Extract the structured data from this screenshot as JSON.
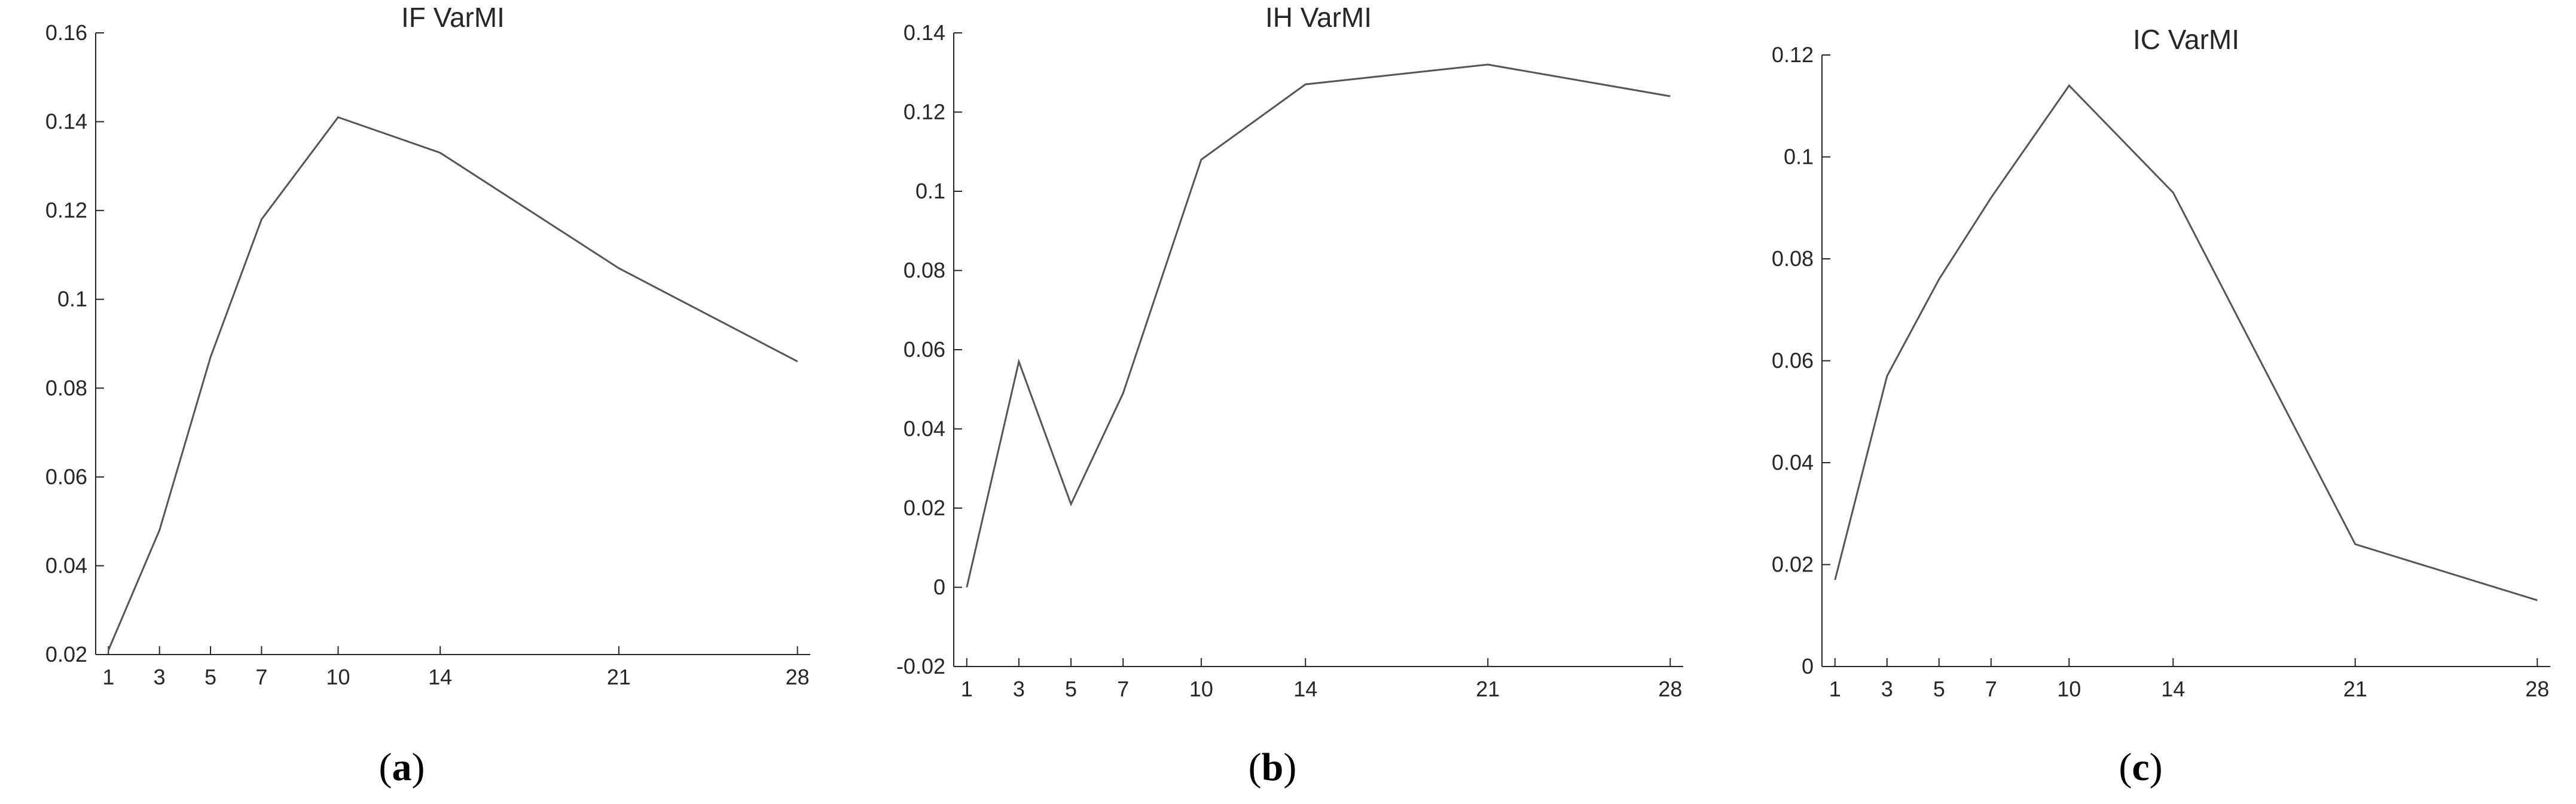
{
  "chart_data": [
    {
      "type": "line",
      "title": "IF VarMI",
      "caption": {
        "open": "(",
        "letter": "a",
        "close": ")"
      },
      "xlabel": "",
      "ylabel": "",
      "x": [
        1,
        3,
        5,
        7,
        10,
        14,
        21,
        28
      ],
      "xlim": [
        0.5,
        28.5
      ],
      "ylim": [
        0.02,
        0.16
      ],
      "y_ticks": [
        "0.02",
        "0.04",
        "0.06",
        "0.08",
        "0.1",
        "0.12",
        "0.14",
        "0.16"
      ],
      "series": [
        {
          "values": [
            0.021,
            0.048,
            0.087,
            0.118,
            0.141,
            0.133,
            0.107,
            0.086
          ]
        }
      ],
      "grid": false,
      "line_color": "#555555"
    },
    {
      "type": "line",
      "title": "IH VarMI",
      "caption": {
        "open": "(",
        "letter": "b",
        "close": ")"
      },
      "xlabel": "",
      "ylabel": "",
      "x": [
        1,
        3,
        5,
        7,
        10,
        14,
        21,
        28
      ],
      "xlim": [
        0.5,
        28.5
      ],
      "ylim": [
        -0.02,
        0.14
      ],
      "y_ticks": [
        "-0.02",
        "0",
        "0.02",
        "0.04",
        "0.06",
        "0.08",
        "0.1",
        "0.12",
        "0.14"
      ],
      "series": [
        {
          "values": [
            0.0,
            0.057,
            0.021,
            0.049,
            0.108,
            0.127,
            0.132,
            0.124
          ]
        }
      ],
      "grid": false,
      "line_color": "#555555"
    },
    {
      "type": "line",
      "title": "IC VarMI",
      "caption": {
        "open": "(",
        "letter": "c",
        "close": ")"
      },
      "xlabel": "",
      "ylabel": "",
      "x": [
        1,
        3,
        5,
        7,
        10,
        14,
        21,
        28
      ],
      "xlim": [
        0.5,
        28.5
      ],
      "ylim": [
        0,
        0.12
      ],
      "y_ticks": [
        "0",
        "0.02",
        "0.04",
        "0.06",
        "0.08",
        "0.1",
        "0.12"
      ],
      "series": [
        {
          "values": [
            0.017,
            0.057,
            0.076,
            0.092,
            0.114,
            0.093,
            0.024,
            0.013
          ]
        }
      ],
      "grid": false,
      "line_color": "#555555"
    }
  ]
}
